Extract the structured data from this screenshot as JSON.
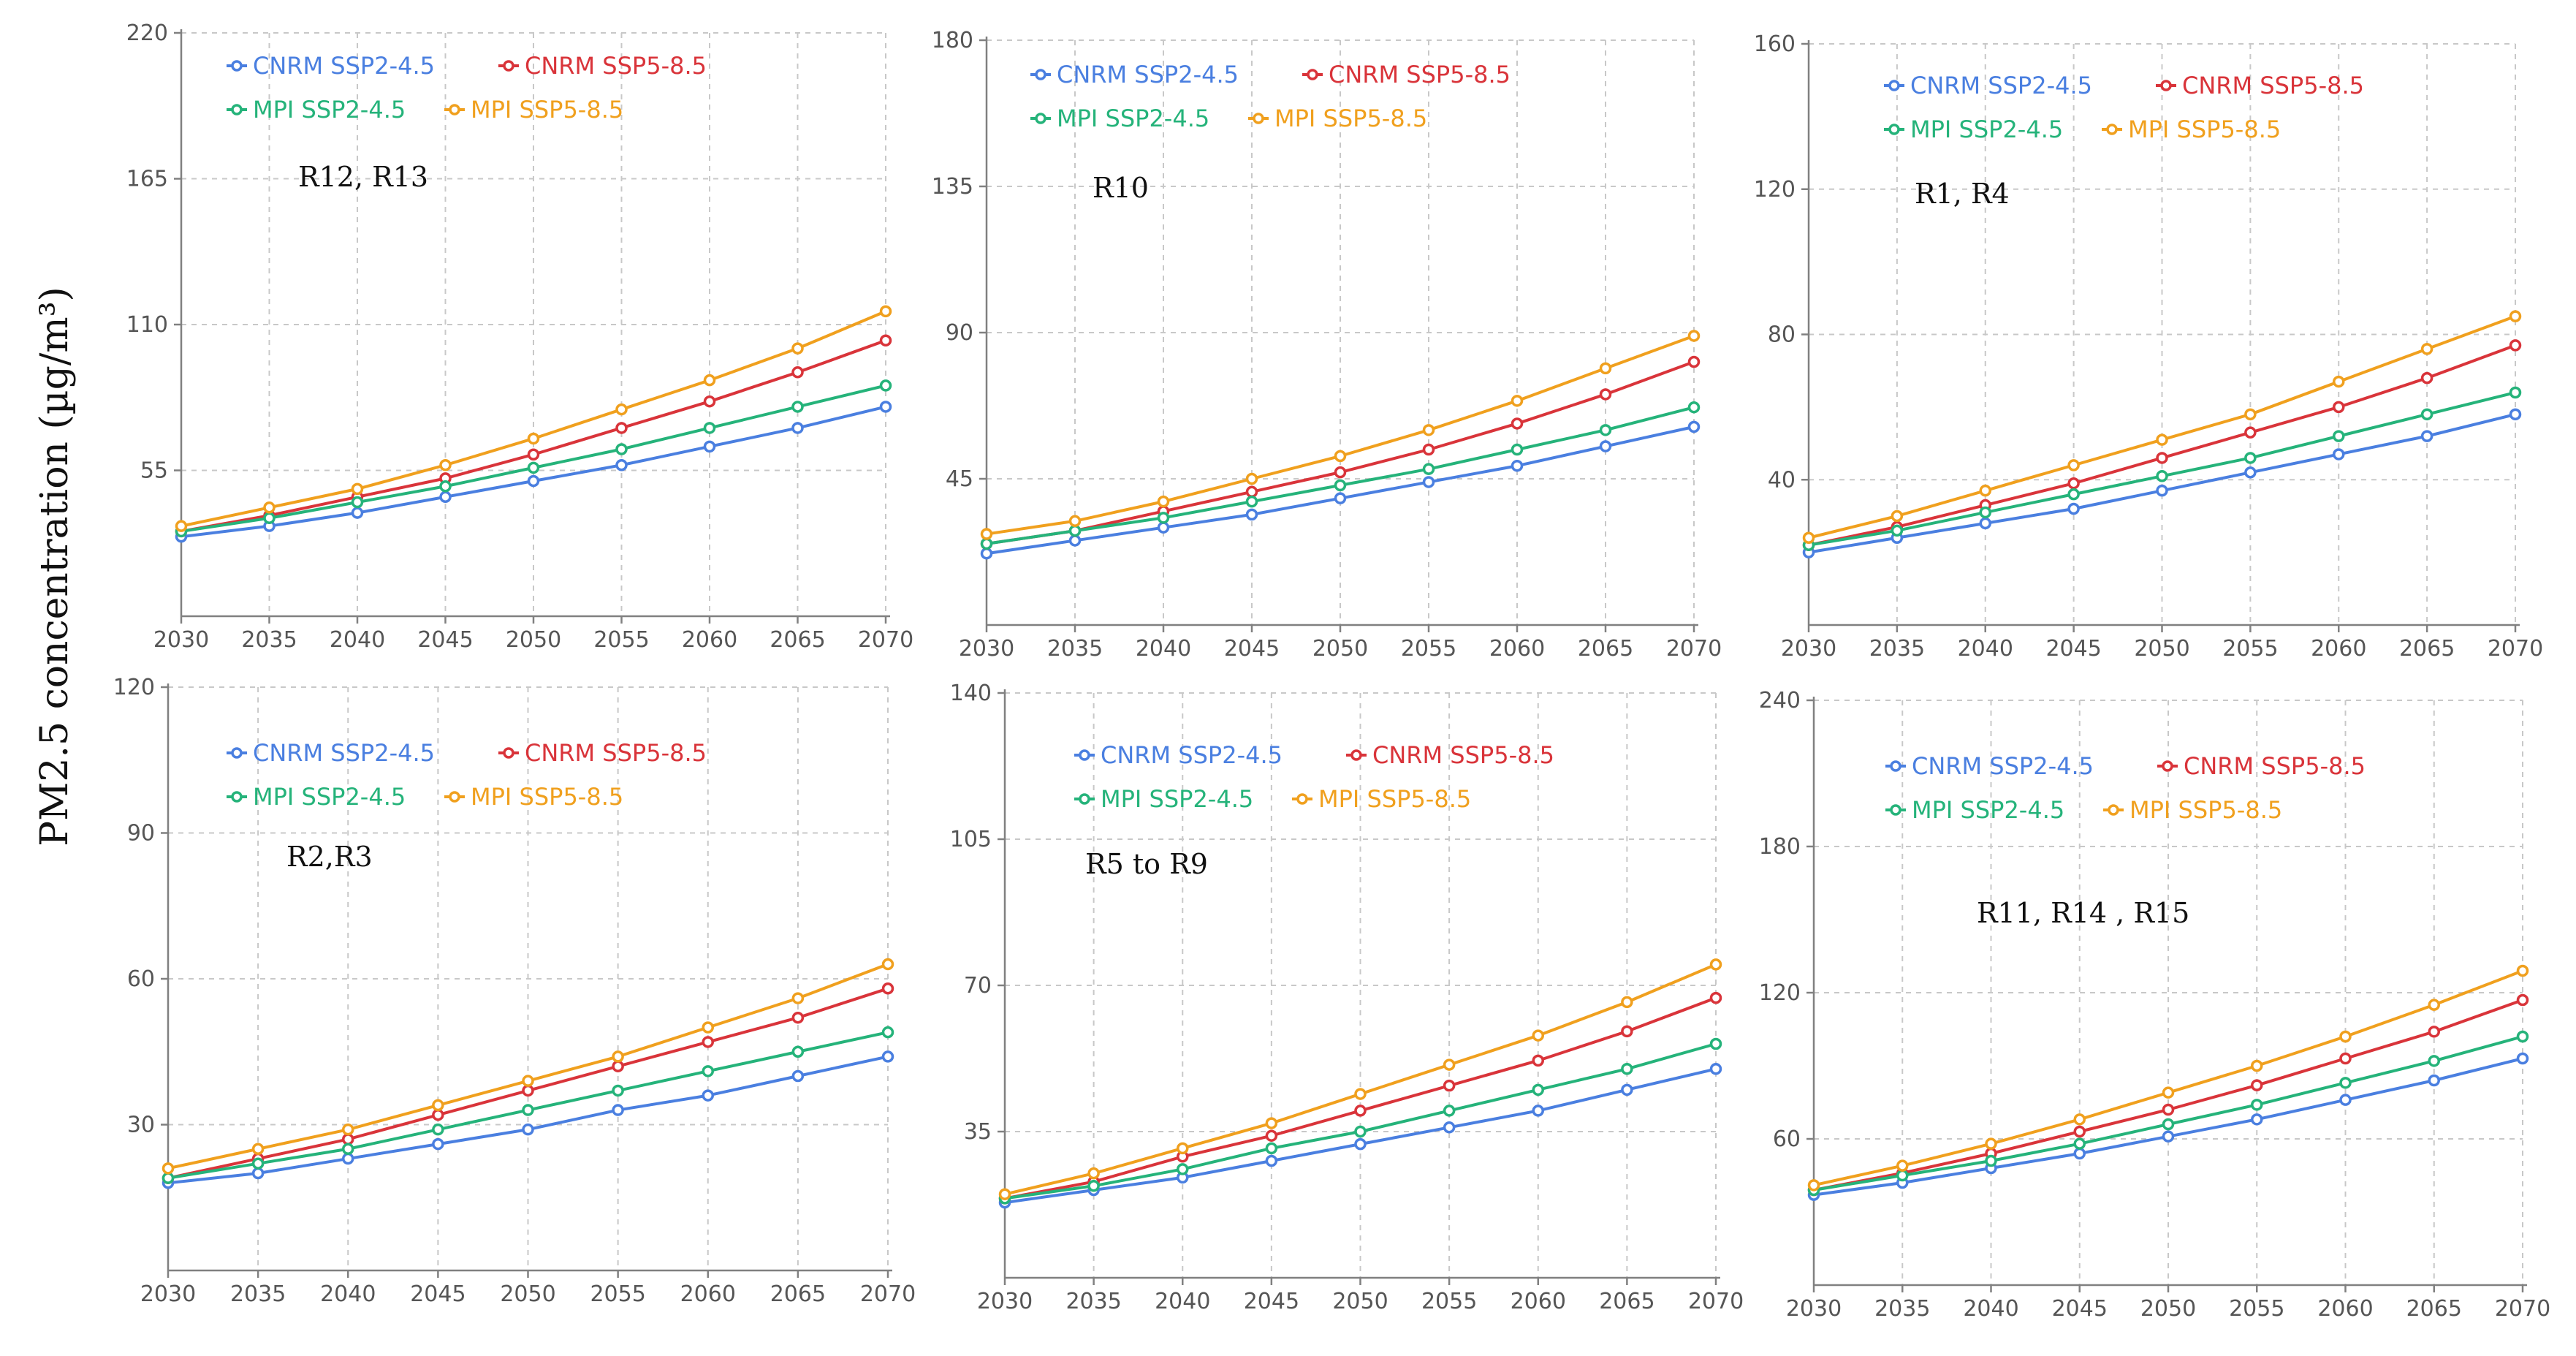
{
  "figure": {
    "ylabel": "PM2.5 concentration (µg/m³)"
  },
  "series_styles": [
    {
      "name": "CNRM SSP2-4.5",
      "color": "#4a7fe0"
    },
    {
      "name": "CNRM SSP5-8.5",
      "color": "#d9343a"
    },
    {
      "name": "MPI SSP2-4.5",
      "color": "#25b37a"
    },
    {
      "name": "MPI SSP5-8.5",
      "color": "#f0a01e"
    }
  ],
  "chart_data": [
    {
      "type": "line",
      "region": "R12, R13",
      "x": [
        2030,
        2035,
        2040,
        2045,
        2050,
        2055,
        2060,
        2065,
        2070
      ],
      "xticks": [
        "2030",
        "2035",
        "2040",
        "2045",
        "2050",
        "2055",
        "2060",
        "2065",
        "2070"
      ],
      "ylim": [
        0,
        220
      ],
      "yticks": [
        55,
        110,
        165,
        220
      ],
      "ytick_labels": [
        "55",
        "110",
        "165",
        "220"
      ],
      "series": [
        {
          "name": "CNRM SSP2-4.5",
          "values": [
            30,
            34,
            39,
            45,
            51,
            57,
            64,
            71,
            79
          ]
        },
        {
          "name": "CNRM SSP5-8.5",
          "values": [
            32,
            38,
            45,
            52,
            61,
            71,
            81,
            92,
            104
          ]
        },
        {
          "name": "MPI SSP2-4.5",
          "values": [
            32,
            37,
            43,
            49,
            56,
            63,
            71,
            79,
            87
          ]
        },
        {
          "name": "MPI SSP5-8.5",
          "values": [
            34,
            41,
            48,
            57,
            67,
            78,
            89,
            101,
            115
          ]
        }
      ]
    },
    {
      "type": "line",
      "region": "R10",
      "x": [
        2030,
        2035,
        2040,
        2045,
        2050,
        2055,
        2060,
        2065,
        2070
      ],
      "xticks": [
        "2030",
        "2035",
        "2040",
        "2045",
        "2050",
        "2055",
        "2060",
        "2065",
        "2070"
      ],
      "ylim": [
        0,
        180
      ],
      "yticks": [
        45,
        90,
        135,
        180
      ],
      "ytick_labels": [
        "45",
        "90",
        "135",
        "180"
      ],
      "series": [
        {
          "name": "CNRM SSP2-4.5",
          "values": [
            22,
            26,
            30,
            34,
            39,
            44,
            49,
            55,
            61
          ]
        },
        {
          "name": "CNRM SSP5-8.5",
          "values": [
            25,
            29,
            35,
            41,
            47,
            54,
            62,
            71,
            81
          ]
        },
        {
          "name": "MPI SSP2-4.5",
          "values": [
            25,
            29,
            33,
            38,
            43,
            48,
            54,
            60,
            67
          ]
        },
        {
          "name": "MPI SSP5-8.5",
          "values": [
            28,
            32,
            38,
            45,
            52,
            60,
            69,
            79,
            89
          ]
        }
      ]
    },
    {
      "type": "line",
      "region": "R1, R4",
      "x": [
        2030,
        2035,
        2040,
        2045,
        2050,
        2055,
        2060,
        2065,
        2070
      ],
      "xticks": [
        "2030",
        "2035",
        "2040",
        "2045",
        "2050",
        "2055",
        "2060",
        "2065",
        "2070"
      ],
      "ylim": [
        0,
        160
      ],
      "yticks": [
        40,
        80,
        120,
        160
      ],
      "ytick_labels": [
        "40",
        "80",
        "120",
        "160"
      ],
      "series": [
        {
          "name": "CNRM SSP2-4.5",
          "values": [
            20,
            24,
            28,
            32,
            37,
            42,
            47,
            52,
            58
          ]
        },
        {
          "name": "CNRM SSP5-8.5",
          "values": [
            22,
            27,
            33,
            39,
            46,
            53,
            60,
            68,
            77
          ]
        },
        {
          "name": "MPI SSP2-4.5",
          "values": [
            22,
            26,
            31,
            36,
            41,
            46,
            52,
            58,
            64
          ]
        },
        {
          "name": "MPI SSP5-8.5",
          "values": [
            24,
            30,
            37,
            44,
            51,
            58,
            67,
            76,
            85
          ]
        }
      ]
    },
    {
      "type": "line",
      "region": "R2,R3",
      "x": [
        2030,
        2035,
        2040,
        2045,
        2050,
        2055,
        2060,
        2065,
        2070
      ],
      "xticks": [
        "2030",
        "2035",
        "2040",
        "2045",
        "2050",
        "2055",
        "2060",
        "2065",
        "2070"
      ],
      "ylim": [
        0,
        120
      ],
      "yticks": [
        30,
        60,
        90,
        120
      ],
      "ytick_labels": [
        "30",
        "60",
        "90",
        "120"
      ],
      "series": [
        {
          "name": "CNRM SSP2-4.5",
          "values": [
            18,
            20,
            23,
            26,
            29,
            33,
            36,
            40,
            44
          ]
        },
        {
          "name": "CNRM SSP5-8.5",
          "values": [
            19,
            23,
            27,
            32,
            37,
            42,
            47,
            52,
            58
          ]
        },
        {
          "name": "MPI SSP2-4.5",
          "values": [
            19,
            22,
            25,
            29,
            33,
            37,
            41,
            45,
            49
          ]
        },
        {
          "name": "MPI SSP5-8.5",
          "values": [
            21,
            25,
            29,
            34,
            39,
            44,
            50,
            56,
            63
          ]
        }
      ]
    },
    {
      "type": "line",
      "region": "R5 to R9",
      "x": [
        2030,
        2035,
        2040,
        2045,
        2050,
        2055,
        2060,
        2065,
        2070
      ],
      "xticks": [
        "2030",
        "2035",
        "2040",
        "2045",
        "2050",
        "2055",
        "2060",
        "2065",
        "2070"
      ],
      "ylim": [
        0,
        140
      ],
      "yticks": [
        35,
        70,
        105,
        140
      ],
      "ytick_labels": [
        "35",
        "70",
        "105",
        "140"
      ],
      "series": [
        {
          "name": "CNRM SSP2-4.5",
          "values": [
            18,
            21,
            24,
            28,
            32,
            36,
            40,
            45,
            50
          ]
        },
        {
          "name": "CNRM SSP5-8.5",
          "values": [
            19,
            23,
            29,
            34,
            40,
            46,
            52,
            59,
            67
          ]
        },
        {
          "name": "MPI SSP2-4.5",
          "values": [
            19,
            22,
            26,
            31,
            35,
            40,
            45,
            50,
            56
          ]
        },
        {
          "name": "MPI SSP5-8.5",
          "values": [
            20,
            25,
            31,
            37,
            44,
            51,
            58,
            66,
            75
          ]
        }
      ]
    },
    {
      "type": "line",
      "region": "R11, R14 , R15",
      "x": [
        2030,
        2035,
        2040,
        2045,
        2050,
        2055,
        2060,
        2065,
        2070
      ],
      "xticks": [
        "2030",
        "2035",
        "2040",
        "2045",
        "2050",
        "2055",
        "2060",
        "2065",
        "2070"
      ],
      "ylim": [
        0,
        240
      ],
      "yticks": [
        60,
        120,
        180,
        240
      ],
      "ytick_labels": [
        "60",
        "120",
        "180",
        "240"
      ],
      "series": [
        {
          "name": "CNRM SSP2-4.5",
          "values": [
            37,
            42,
            48,
            54,
            61,
            68,
            76,
            84,
            93
          ]
        },
        {
          "name": "CNRM SSP5-8.5",
          "values": [
            39,
            46,
            54,
            63,
            72,
            82,
            93,
            104,
            117
          ]
        },
        {
          "name": "MPI SSP2-4.5",
          "values": [
            39,
            45,
            51,
            58,
            66,
            74,
            83,
            92,
            102
          ]
        },
        {
          "name": "MPI SSP5-8.5",
          "values": [
            41,
            49,
            58,
            68,
            79,
            90,
            102,
            115,
            129
          ]
        }
      ]
    }
  ]
}
